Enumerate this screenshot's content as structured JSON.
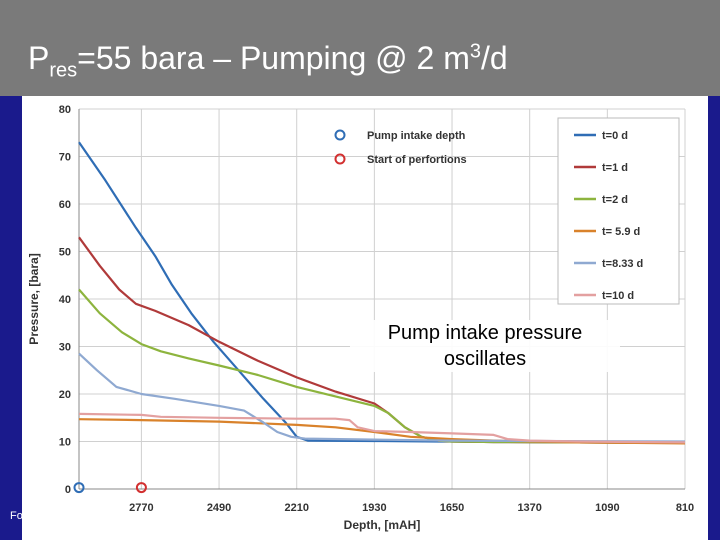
{
  "header": {
    "title_prefix": "P",
    "title_sub": "res",
    "title_mid": "=55 bara – Pumping @ 2 m",
    "title_sup": "3",
    "title_suffix": "/d"
  },
  "footer_fragment": "Fo",
  "annotation": {
    "line1": "Pump intake pressure",
    "line2": "oscillates"
  },
  "colors": {
    "background": "#1a1a8c",
    "header": "#7a7a7a"
  },
  "chart_data": {
    "type": "line",
    "xlabel": "Depth, [mAH]",
    "ylabel": "Pressure, [bara]",
    "x_reversed": true,
    "xlim": [
      2995,
      810
    ],
    "ylim": [
      0,
      80
    ],
    "x_ticks": [
      "2770",
      "2490",
      "2210",
      "1930",
      "1650",
      "1370",
      "1090",
      "810"
    ],
    "x_tick_values": [
      2770,
      2490,
      2210,
      1930,
      1650,
      1370,
      1090,
      810
    ],
    "y_ticks": [
      "0",
      "10",
      "20",
      "30",
      "40",
      "50",
      "60",
      "70",
      "80"
    ],
    "y_tick_values": [
      0,
      10,
      20,
      30,
      40,
      50,
      60,
      70,
      80
    ],
    "grid": true,
    "legend_position": "top-right",
    "series": [
      {
        "name": "t=0 d",
        "color": "#2f6db5",
        "x": [
          2995,
          2900,
          2790,
          2720,
          2660,
          2590,
          2510,
          2420,
          2330,
          2250,
          2210,
          2170,
          1930,
          1700,
          1650,
          1500,
          1200,
          810
        ],
        "y": [
          73,
          65,
          55,
          49,
          43,
          37,
          31,
          25,
          19,
          14,
          11,
          10.2,
          10.1,
          10.0,
          10.0,
          9.9,
          9.8,
          9.7
        ]
      },
      {
        "name": "t=1 d",
        "color": "#b03a3a",
        "x": [
          2995,
          2920,
          2850,
          2790,
          2720,
          2600,
          2490,
          2350,
          2210,
          2070,
          1930,
          1880,
          1820,
          1760,
          1700,
          1650,
          1500,
          1200,
          810
        ],
        "y": [
          53,
          47,
          42,
          39,
          37.5,
          34.5,
          31,
          27,
          23.5,
          20.5,
          18,
          16,
          13,
          11,
          10.2,
          10,
          9.9,
          9.8,
          9.7
        ]
      },
      {
        "name": "t=2 d",
        "color": "#8db43e",
        "x": [
          2995,
          2920,
          2840,
          2770,
          2700,
          2600,
          2490,
          2350,
          2210,
          2070,
          1930,
          1880,
          1820,
          1760,
          1700,
          1650,
          1500,
          1200,
          810
        ],
        "y": [
          42,
          37,
          33,
          30.5,
          29,
          27.5,
          26,
          24,
          21.5,
          19.5,
          17.5,
          16,
          13,
          11,
          10.2,
          10,
          9.9,
          9.8,
          9.7
        ]
      },
      {
        "name": "t= 5.9 d",
        "color": "#d9822b",
        "x": [
          2995,
          2770,
          2490,
          2210,
          2070,
          1930,
          1800,
          1650,
          1500,
          1370,
          1200,
          1000,
          810
        ],
        "y": [
          14.7,
          14.5,
          14.2,
          13.5,
          13,
          12,
          11,
          10.5,
          10.2,
          10,
          9.8,
          9.7,
          9.6
        ]
      },
      {
        "name": "t=8.33 d",
        "color": "#8fa9d1",
        "x": [
          2995,
          2930,
          2860,
          2770,
          2650,
          2490,
          2400,
          2330,
          2280,
          2230,
          2180,
          1930,
          1650,
          1370,
          810
        ],
        "y": [
          28.5,
          25,
          21.5,
          20,
          19,
          17.5,
          16.5,
          14,
          12,
          11,
          10.6,
          10.4,
          10.2,
          10.1,
          10
        ]
      },
      {
        "name": "t=10 d",
        "color": "#e3a0a0",
        "x": [
          2995,
          2770,
          2700,
          2490,
          2210,
          2070,
          2020,
          1990,
          1930,
          1800,
          1650,
          1500,
          1450,
          1370,
          1200,
          1000,
          810
        ],
        "y": [
          15.8,
          15.6,
          15.2,
          15,
          14.8,
          14.8,
          14.5,
          13,
          12.2,
          12,
          11.7,
          11.4,
          10.5,
          10.2,
          10,
          9.9,
          9.8
        ]
      }
    ],
    "markers": [
      {
        "name": "Pump intake depth",
        "color": "#2f6db5",
        "x": 2995,
        "y": 0.3
      },
      {
        "name": "Start of perfortions",
        "color": "#d23030",
        "x": 2770,
        "y": 0.3
      }
    ]
  }
}
